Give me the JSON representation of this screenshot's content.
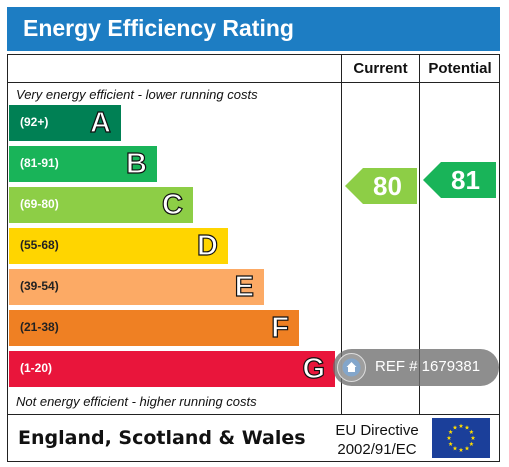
{
  "title": "Energy Efficiency Rating",
  "columns": {
    "current": "Current",
    "potential": "Potential"
  },
  "top_note": "Very energy efficient - lower running costs",
  "bottom_note": "Not energy efficient - higher running costs",
  "bands": [
    {
      "range": "(92+)",
      "letter": "A",
      "color": "#008054"
    },
    {
      "range": "(81-91)",
      "letter": "B",
      "color": "#19b459"
    },
    {
      "range": "(69-80)",
      "letter": "C",
      "color": "#8dce46"
    },
    {
      "range": "(55-68)",
      "letter": "D",
      "color": "#ffd500"
    },
    {
      "range": "(39-54)",
      "letter": "E",
      "color": "#fcaa65"
    },
    {
      "range": "(21-38)",
      "letter": "F",
      "color": "#ef8023"
    },
    {
      "range": "(1-20)",
      "letter": "G",
      "color": "#e9153b"
    }
  ],
  "current_rating": {
    "value": "80",
    "color": "#8dce46"
  },
  "potential_rating": {
    "value": "81",
    "color": "#19b459"
  },
  "footer": {
    "region": "England, Scotland & Wales",
    "directive_line1": "EU Directive",
    "directive_line2": "2002/91/EC"
  },
  "ref": {
    "text": "REF # 1679381"
  },
  "colors": {
    "title_bar": "#1d7dc3",
    "flag": "#1b3f9a",
    "stars": "#ffdd00"
  }
}
